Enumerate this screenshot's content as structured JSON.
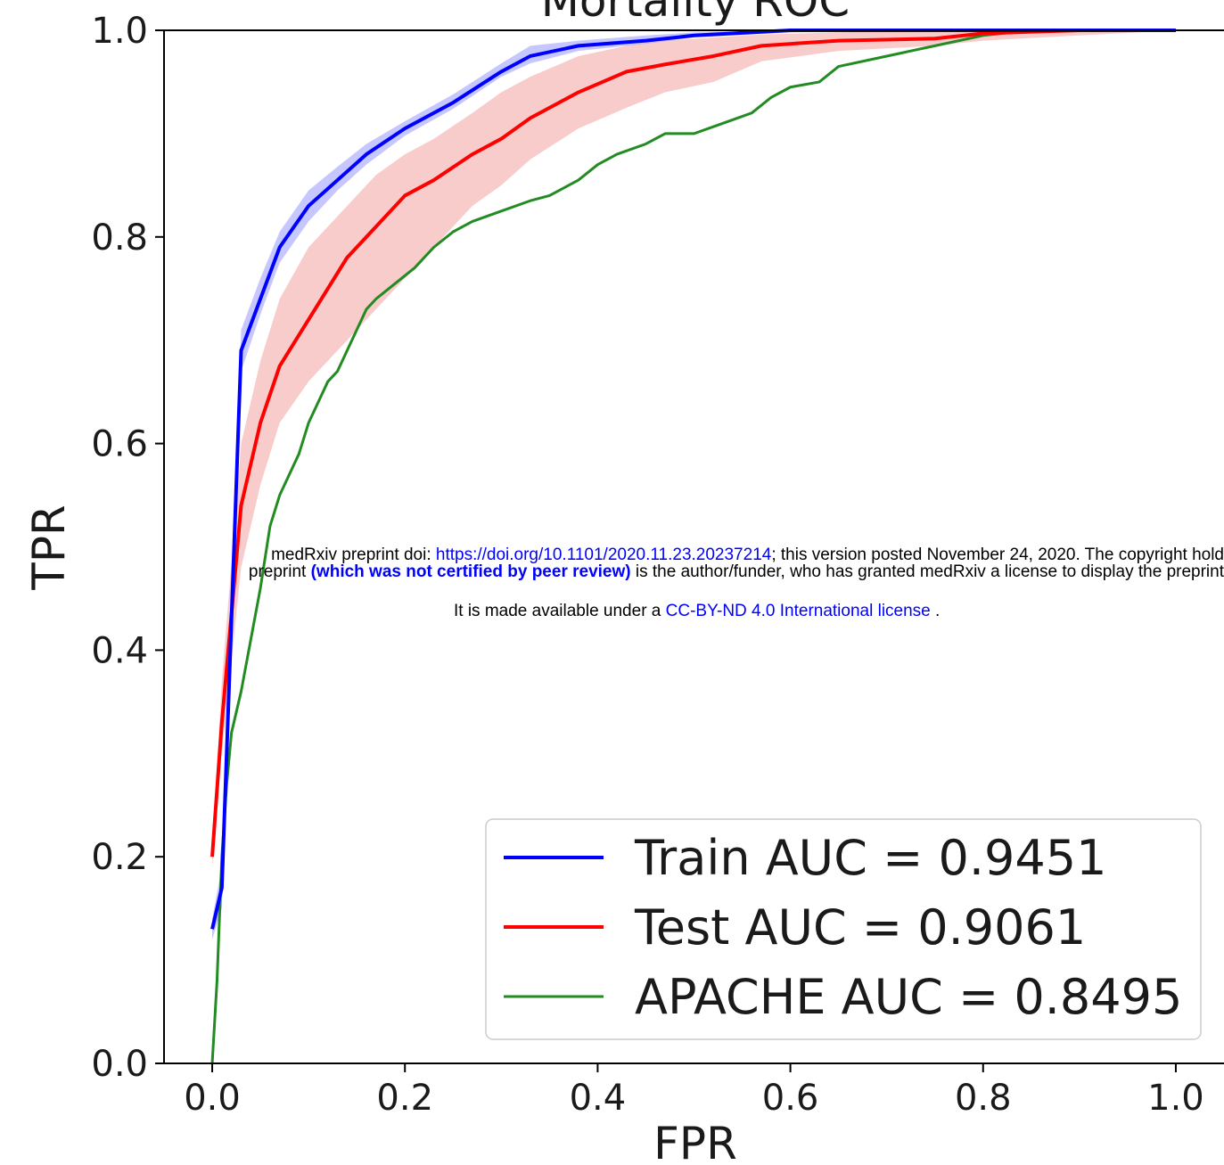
{
  "chart_data": {
    "type": "line",
    "title": "Mortality ROC",
    "xlabel": "FPR",
    "ylabel": "TPR",
    "xlim": [
      -0.05,
      1.05
    ],
    "ylim": [
      0.0,
      1.0
    ],
    "x_ticks": [
      "0.0",
      "0.2",
      "0.4",
      "0.6",
      "0.8",
      "1.0"
    ],
    "y_ticks": [
      "0.0",
      "0.2",
      "0.4",
      "0.6",
      "0.8",
      "1.0"
    ],
    "grid": false,
    "legend_position": "bottom-right",
    "series": [
      {
        "name": "Train AUC = 0.9451",
        "color": "#0000ff",
        "band_color": "#0000ff",
        "x": [
          0.0,
          0.01,
          0.03,
          0.05,
          0.07,
          0.1,
          0.13,
          0.16,
          0.2,
          0.25,
          0.3,
          0.33,
          0.38,
          0.45,
          0.5,
          0.6,
          0.7,
          0.8,
          0.9,
          1.0
        ],
        "y": [
          0.13,
          0.17,
          0.69,
          0.74,
          0.79,
          0.83,
          0.855,
          0.88,
          0.905,
          0.93,
          0.96,
          0.975,
          0.985,
          0.99,
          0.995,
          1.0,
          1.0,
          1.0,
          1.0,
          1.0
        ],
        "band_low": [
          0.12,
          0.15,
          0.67,
          0.725,
          0.775,
          0.815,
          0.845,
          0.87,
          0.898,
          0.924,
          0.955,
          0.968,
          0.98,
          0.987,
          0.993,
          0.998,
          1.0,
          1.0,
          1.0,
          1.0
        ],
        "band_high": [
          0.14,
          0.19,
          0.71,
          0.76,
          0.805,
          0.845,
          0.868,
          0.89,
          0.912,
          0.938,
          0.968,
          0.985,
          0.99,
          0.995,
          0.998,
          1.0,
          1.0,
          1.0,
          1.0,
          1.0
        ]
      },
      {
        "name": "Test AUC = 0.9061",
        "color": "#ff0000",
        "band_color": "#f08080",
        "x": [
          0.0,
          0.01,
          0.03,
          0.05,
          0.07,
          0.1,
          0.14,
          0.17,
          0.2,
          0.23,
          0.27,
          0.3,
          0.33,
          0.38,
          0.43,
          0.47,
          0.52,
          0.57,
          0.65,
          0.75,
          0.8,
          0.9,
          1.0
        ],
        "y": [
          0.2,
          0.33,
          0.54,
          0.62,
          0.675,
          0.72,
          0.78,
          0.81,
          0.84,
          0.855,
          0.88,
          0.895,
          0.915,
          0.94,
          0.96,
          0.967,
          0.975,
          0.985,
          0.99,
          0.992,
          0.997,
          1.0,
          1.0
        ],
        "band_low": [
          0.19,
          0.3,
          0.48,
          0.56,
          0.62,
          0.66,
          0.7,
          0.73,
          0.76,
          0.79,
          0.83,
          0.85,
          0.875,
          0.905,
          0.925,
          0.94,
          0.95,
          0.97,
          0.98,
          0.985,
          0.99,
          0.995,
          1.0
        ],
        "band_high": [
          0.21,
          0.37,
          0.6,
          0.68,
          0.74,
          0.79,
          0.83,
          0.86,
          0.88,
          0.895,
          0.92,
          0.94,
          0.955,
          0.975,
          0.985,
          0.99,
          0.993,
          0.996,
          0.998,
          1.0,
          1.0,
          1.0,
          1.0
        ]
      },
      {
        "name": "APACHE AUC = 0.8495",
        "color": "#228b22",
        "x": [
          0.0,
          0.005,
          0.01,
          0.015,
          0.02,
          0.03,
          0.04,
          0.05,
          0.06,
          0.07,
          0.08,
          0.09,
          0.1,
          0.11,
          0.12,
          0.13,
          0.14,
          0.15,
          0.16,
          0.17,
          0.19,
          0.21,
          0.23,
          0.25,
          0.27,
          0.3,
          0.33,
          0.35,
          0.38,
          0.4,
          0.42,
          0.45,
          0.47,
          0.5,
          0.53,
          0.56,
          0.58,
          0.6,
          0.63,
          0.65,
          0.7,
          0.75,
          0.8,
          0.85,
          0.92,
          1.0
        ],
        "y": [
          0.0,
          0.08,
          0.2,
          0.27,
          0.32,
          0.36,
          0.41,
          0.46,
          0.52,
          0.55,
          0.57,
          0.59,
          0.62,
          0.64,
          0.66,
          0.67,
          0.69,
          0.71,
          0.73,
          0.74,
          0.755,
          0.77,
          0.79,
          0.805,
          0.815,
          0.825,
          0.835,
          0.84,
          0.855,
          0.87,
          0.88,
          0.89,
          0.9,
          0.9,
          0.91,
          0.92,
          0.935,
          0.945,
          0.95,
          0.965,
          0.975,
          0.985,
          0.995,
          1.0,
          1.0,
          1.0
        ]
      }
    ]
  },
  "banner": {
    "line1_prefix": "medRxiv preprint doi: ",
    "line1_link": "https://doi.org/10.1101/2020.11.23.20237214",
    "line1_suffix": "; this version posted November 24, 2020. The copyright hold",
    "line2_prefix": "preprint ",
    "line2_bold": "(which was not certified by peer review)",
    "line2_suffix": " is the author/funder, who has granted medRxiv a license to display the preprint",
    "line3_prefix": "It is made available under a ",
    "line3_link": "CC-BY-ND 4.0 International license",
    "line3_suffix": " ."
  }
}
